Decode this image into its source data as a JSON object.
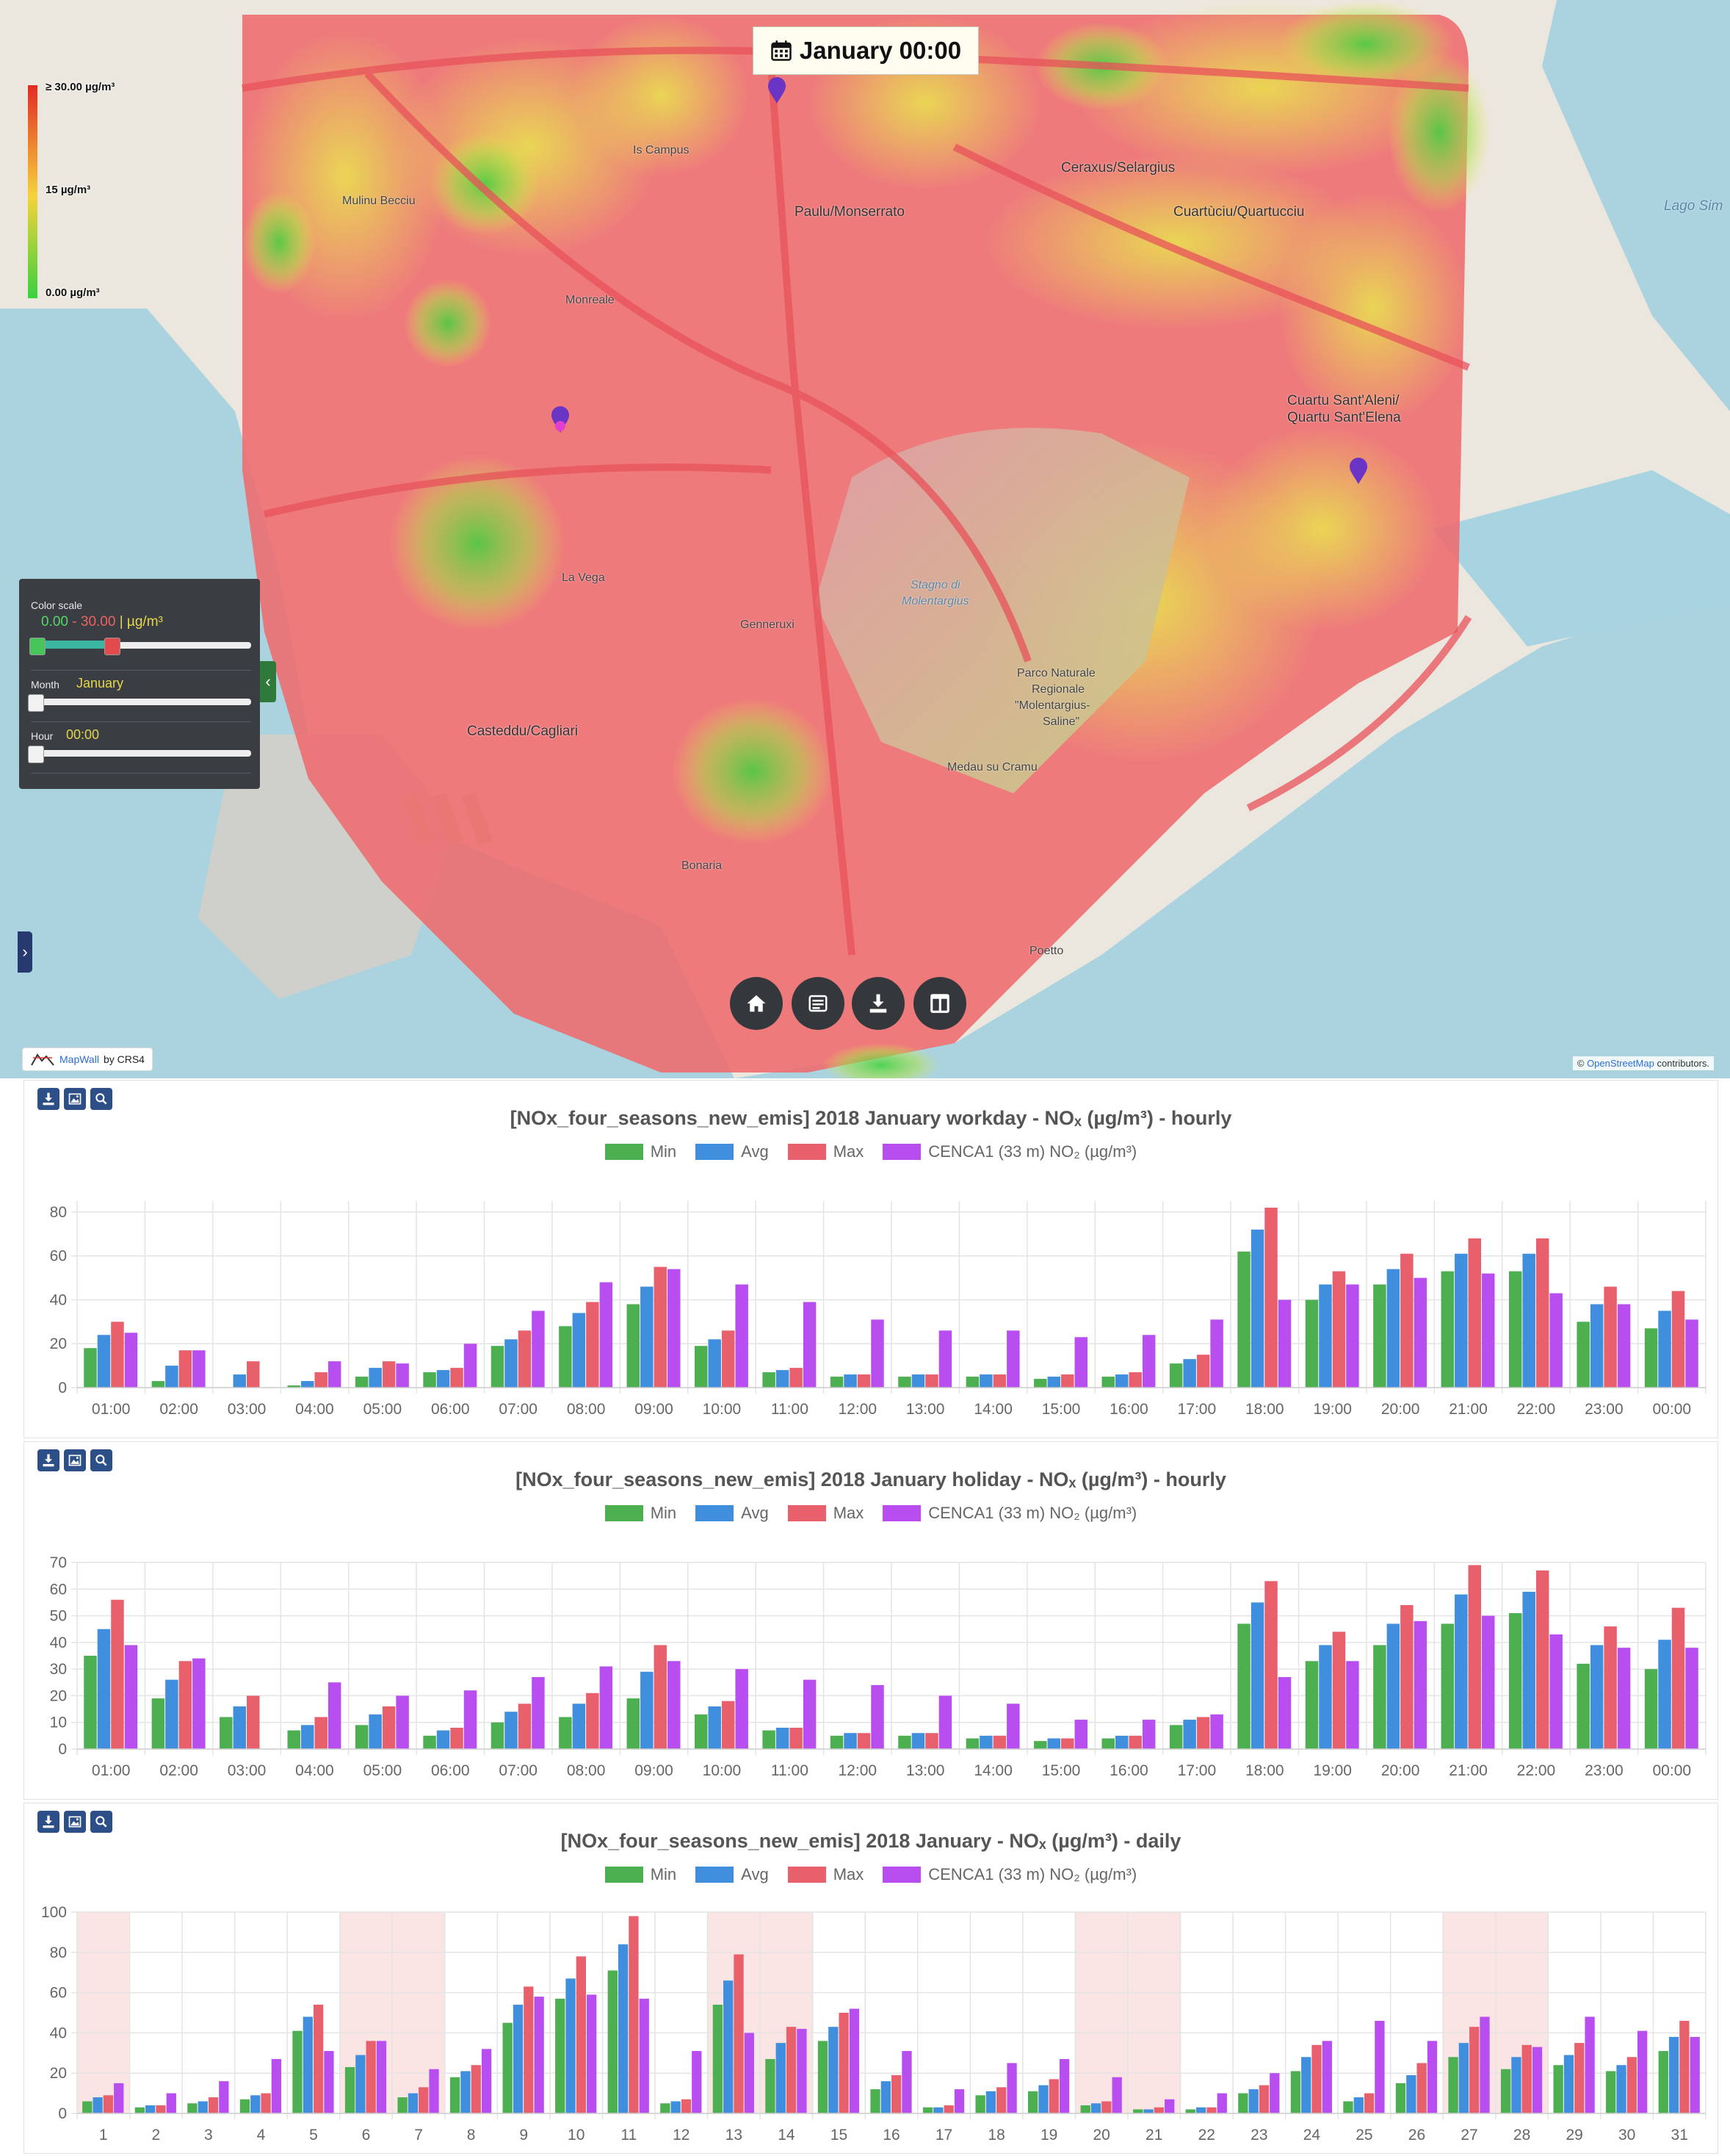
{
  "map": {
    "date_label": "January 00:00",
    "legend": {
      "max": "≥ 30.00 µg/m³",
      "mid": "15 µg/m³",
      "min": "0.00 µg/m³"
    },
    "control": {
      "color_scale_label": "Color scale",
      "range_lo": "0.00",
      "range_sep": " - ",
      "range_hi": "30.00",
      "range_unit": " | µg/m³",
      "month_label": "Month",
      "month_value": "January",
      "hour_label": "Hour",
      "hour_value": "00:00"
    },
    "brand": {
      "name": "MapWall",
      "by": "by CRS4"
    },
    "attribution": {
      "osm": "OpenStreetMap",
      "rest": " contributors.",
      "prefix": "© "
    },
    "places": {
      "ceraxus": "Ceraxus/Selargius",
      "paulu": "Paulu/Monserrato",
      "cuartuciu": "Cuartùciu/Quartucciu",
      "quartu": "Cuartu Sant'Aleni/",
      "quartu2": "Quartu Sant'Elena",
      "casteddu": "Casteddu/Cagliari",
      "stagno": "Stagno di",
      "stagno2": "Molentargius",
      "parco": "Parco Naturale",
      "parco2": "Regionale",
      "parco3": "\"Molentargius-",
      "parco4": "Saline\"",
      "lago": "Lago Sim",
      "mulinu": "Mulinu Becciu",
      "pirri": "Is Campus",
      "monreale": "Monreale",
      "lavega": "La Vega",
      "bonaria": "Bonaria",
      "medau": "Medau su Cramu",
      "genneruxi": "Genneruxi",
      "poetto": "Poetto"
    }
  },
  "charts": [
    {
      "title": "[NOx_four_seasons_new_emis] 2018  January workday - NOₓ (µg/m³) - hourly",
      "legend": [
        "Min",
        "Avg",
        "Max",
        "CENCA1 (33 m) NO₂ (µg/m³)"
      ]
    },
    {
      "title": "[NOx_four_seasons_new_emis] 2018  January holiday - NOₓ (µg/m³) - hourly",
      "legend": [
        "Min",
        "Avg",
        "Max",
        "CENCA1 (33 m) NO₂ (µg/m³)"
      ]
    },
    {
      "title": "[NOx_four_seasons_new_emis] 2018  January - NOₓ (µg/m³) - daily",
      "legend": [
        "Min",
        "Avg",
        "Max",
        "CENCA1 (33 m) NO₂ (µg/m³)"
      ]
    }
  ],
  "colors": {
    "min": "#4caf50",
    "avg": "#3f8fde",
    "max": "#e8606c",
    "station": "#b84ef0",
    "weekend": "#fbe4e4"
  },
  "chart_data": [
    {
      "type": "bar",
      "categories": [
        "01:00",
        "02:00",
        "03:00",
        "04:00",
        "05:00",
        "06:00",
        "07:00",
        "08:00",
        "09:00",
        "10:00",
        "11:00",
        "12:00",
        "13:00",
        "14:00",
        "15:00",
        "16:00",
        "17:00",
        "18:00",
        "19:00",
        "20:00",
        "21:00",
        "22:00",
        "23:00",
        "00:00"
      ],
      "ylim": [
        0,
        85
      ],
      "yticks": [
        0,
        20,
        40,
        60,
        80
      ],
      "series": [
        {
          "name": "Min",
          "values": [
            18,
            3,
            0,
            1,
            5,
            7,
            19,
            28,
            38,
            19,
            7,
            5,
            5,
            5,
            4,
            5,
            11,
            62,
            40,
            47,
            53,
            53,
            30,
            27
          ]
        },
        {
          "name": "Avg",
          "values": [
            24,
            10,
            6,
            3,
            9,
            8,
            22,
            34,
            46,
            22,
            8,
            6,
            6,
            6,
            5,
            6,
            13,
            72,
            47,
            54,
            61,
            61,
            38,
            35
          ]
        },
        {
          "name": "Max",
          "values": [
            30,
            17,
            12,
            7,
            12,
            9,
            26,
            39,
            55,
            26,
            9,
            6,
            6,
            6,
            6,
            7,
            15,
            82,
            53,
            61,
            68,
            68,
            46,
            44
          ]
        },
        {
          "name": "CENCA1 (33 m) NO₂ (µg/m³)",
          "values": [
            25,
            17,
            null,
            12,
            11,
            20,
            35,
            48,
            54,
            47,
            39,
            31,
            26,
            26,
            23,
            24,
            31,
            40,
            47,
            50,
            52,
            43,
            38,
            31
          ]
        }
      ]
    },
    {
      "type": "bar",
      "categories": [
        "01:00",
        "02:00",
        "03:00",
        "04:00",
        "05:00",
        "06:00",
        "07:00",
        "08:00",
        "09:00",
        "10:00",
        "11:00",
        "12:00",
        "13:00",
        "14:00",
        "15:00",
        "16:00",
        "17:00",
        "18:00",
        "19:00",
        "20:00",
        "21:00",
        "22:00",
        "23:00",
        "00:00"
      ],
      "ylim": [
        0,
        70
      ],
      "yticks": [
        0,
        10,
        20,
        30,
        40,
        50,
        60,
        70
      ],
      "series": [
        {
          "name": "Min",
          "values": [
            35,
            19,
            12,
            7,
            9,
            5,
            10,
            12,
            19,
            13,
            7,
            5,
            5,
            4,
            3,
            4,
            9,
            47,
            33,
            39,
            47,
            51,
            32,
            30
          ]
        },
        {
          "name": "Avg",
          "values": [
            45,
            26,
            16,
            9,
            13,
            7,
            14,
            17,
            29,
            16,
            8,
            6,
            6,
            5,
            4,
            5,
            11,
            55,
            39,
            47,
            58,
            59,
            39,
            41
          ]
        },
        {
          "name": "Max",
          "values": [
            56,
            33,
            20,
            12,
            16,
            8,
            17,
            21,
            39,
            18,
            8,
            6,
            6,
            5,
            4,
            5,
            12,
            63,
            44,
            54,
            69,
            67,
            46,
            53
          ]
        },
        {
          "name": "CENCA1 (33 m) NO₂ (µg/m³)",
          "values": [
            39,
            34,
            null,
            25,
            20,
            22,
            27,
            31,
            33,
            30,
            26,
            24,
            20,
            17,
            11,
            11,
            13,
            27,
            33,
            48,
            50,
            43,
            38,
            38
          ]
        }
      ]
    },
    {
      "type": "bar",
      "categories": [
        "1",
        "2",
        "3",
        "4",
        "5",
        "6",
        "7",
        "8",
        "9",
        "10",
        "11",
        "12",
        "13",
        "14",
        "15",
        "16",
        "17",
        "18",
        "19",
        "20",
        "21",
        "22",
        "23",
        "24",
        "25",
        "26",
        "27",
        "28",
        "29",
        "30",
        "31"
      ],
      "ylim": [
        0,
        100
      ],
      "yticks": [
        0,
        20,
        40,
        60,
        80,
        100
      ],
      "weekend_days": [
        "1",
        "6",
        "7",
        "13",
        "14",
        "20",
        "21",
        "27",
        "28"
      ],
      "series": [
        {
          "name": "Min",
          "values": [
            6,
            3,
            5,
            7,
            41,
            23,
            8,
            18,
            45,
            57,
            71,
            5,
            54,
            27,
            36,
            12,
            3,
            9,
            11,
            4,
            2,
            2,
            10,
            21,
            6,
            15,
            28,
            22,
            24,
            21,
            31
          ]
        },
        {
          "name": "Avg",
          "values": [
            8,
            4,
            6,
            9,
            48,
            29,
            10,
            21,
            54,
            67,
            84,
            6,
            66,
            35,
            43,
            16,
            3,
            11,
            14,
            5,
            2,
            3,
            12,
            28,
            8,
            19,
            35,
            28,
            29,
            24,
            38
          ]
        },
        {
          "name": "Max",
          "values": [
            9,
            4,
            8,
            10,
            54,
            36,
            13,
            24,
            63,
            78,
            98,
            7,
            79,
            43,
            50,
            19,
            4,
            13,
            17,
            6,
            3,
            3,
            14,
            34,
            10,
            25,
            43,
            34,
            35,
            28,
            46
          ]
        },
        {
          "name": "CENCA1 (33 m) NO₂ (µg/m³)",
          "values": [
            15,
            10,
            16,
            27,
            31,
            36,
            22,
            32,
            58,
            59,
            57,
            31,
            40,
            42,
            52,
            31,
            12,
            25,
            27,
            18,
            7,
            10,
            20,
            36,
            46,
            36,
            48,
            33,
            48,
            41,
            38
          ]
        }
      ]
    }
  ]
}
